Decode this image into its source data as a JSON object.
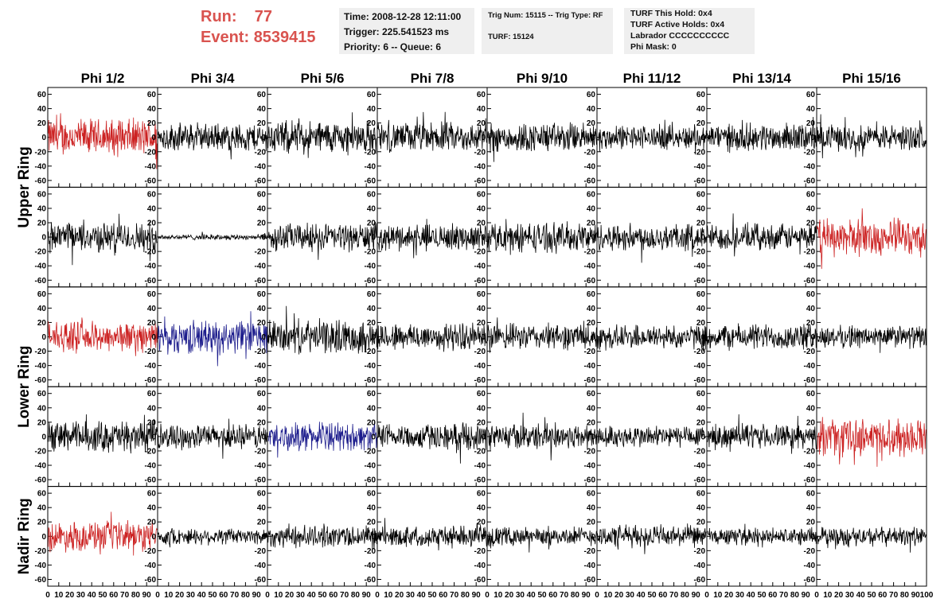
{
  "header": {
    "run_label": "Run:",
    "run_value": "77",
    "event_label": "Event:",
    "event_value": "8539415",
    "time": "Time: 2008-12-28 12:11:00",
    "trigger": "Trigger: 225.541523 ms",
    "priority": "Priority: 6 -- Queue: 6",
    "trig_num": "Trig Num: 15115 -- Trig Type: RF",
    "turf": "TURF: 15124",
    "turf_this_hold": "TURF This Hold: 0x4",
    "turf_active_holds": "TURF Active Holds: 0x4",
    "labrador": "Labrador CCCCCCCCCC",
    "phi_mask": "Phi Mask: 0"
  },
  "chart_data": {
    "type": "line",
    "columns": [
      "Phi 1/2",
      "Phi 3/4",
      "Phi 5/6",
      "Phi 7/8",
      "Phi 9/10",
      "Phi 11/12",
      "Phi 13/14",
      "Phi 15/16"
    ],
    "rows": [
      "Upper Ring",
      "Lower Ring",
      "Nadir Ring"
    ],
    "panel_rows": 5,
    "xlim": [
      0,
      100
    ],
    "ylim": [
      -65,
      65
    ],
    "x_tick_labels": [
      "0",
      "10",
      "20",
      "30",
      "40",
      "50",
      "60",
      "70",
      "80",
      "90",
      "100"
    ],
    "y_tick_labels": [
      "60",
      "40",
      "20",
      "0",
      "-20",
      "-40",
      "-60"
    ],
    "y_ticks": [
      60,
      40,
      20,
      0,
      -20,
      -40,
      -60
    ],
    "trace_colors": {
      "normal": "#000000",
      "triggered": "#cc2222",
      "blue": "#1c1c8c"
    },
    "panels": [
      [
        "triggered",
        "normal",
        "normal",
        "normal",
        "normal",
        "normal",
        "normal",
        "normal"
      ],
      [
        "normal",
        "normal",
        "normal",
        "normal",
        "normal",
        "normal",
        "normal",
        "triggered"
      ],
      [
        "triggered",
        "blue",
        "normal",
        "normal",
        "normal",
        "normal",
        "normal",
        "normal"
      ],
      [
        "normal",
        "normal",
        "blue",
        "normal",
        "normal",
        "normal",
        "normal",
        "triggered"
      ],
      [
        "triggered",
        "normal",
        "normal",
        "normal",
        "normal",
        "normal",
        "normal",
        "normal"
      ]
    ],
    "amplitude": [
      [
        20,
        15,
        18,
        16,
        16,
        13,
        15,
        14
      ],
      [
        16,
        3,
        15,
        14,
        16,
        15,
        14,
        20
      ],
      [
        16,
        18,
        18,
        15,
        14,
        13,
        14,
        12
      ],
      [
        17,
        13,
        15,
        14,
        14,
        12,
        13,
        20
      ],
      [
        16,
        9,
        12,
        11,
        10,
        12,
        9,
        10
      ]
    ]
  }
}
